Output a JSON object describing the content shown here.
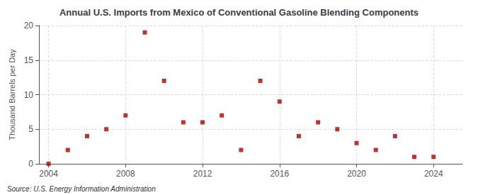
{
  "chart_data": {
    "type": "scatter",
    "title": "Annual U.S. Imports from Mexico of Conventional Gasoline Blending Components",
    "ylabel": "Thousand Barrels per Day",
    "annotations": [
      "Source: U.S. Energy Information Administration"
    ],
    "x": [
      2004,
      2005,
      2006,
      2007,
      2008,
      2009,
      2010,
      2011,
      2012,
      2013,
      2014,
      2015,
      2016,
      2017,
      2018,
      2019,
      2020,
      2021,
      2022,
      2023,
      2024
    ],
    "values": [
      0.0,
      2.0,
      4.0,
      5.0,
      7.0,
      19.0,
      12.0,
      6.0,
      6.0,
      7.0,
      2.0,
      12.0,
      9.0,
      4.0,
      6.0,
      5.0,
      3.0,
      2.0,
      4.0,
      1.0,
      1.0
    ],
    "color": "#aa0000",
    "marker": "square",
    "xlim": [
      2003.5,
      2025.5
    ],
    "xticks": [
      2004,
      2008,
      2012,
      2016,
      2020,
      2024
    ],
    "ylim": [
      0,
      20
    ],
    "yticks": [
      0,
      5,
      10,
      15,
      20
    ],
    "grid": true
  }
}
